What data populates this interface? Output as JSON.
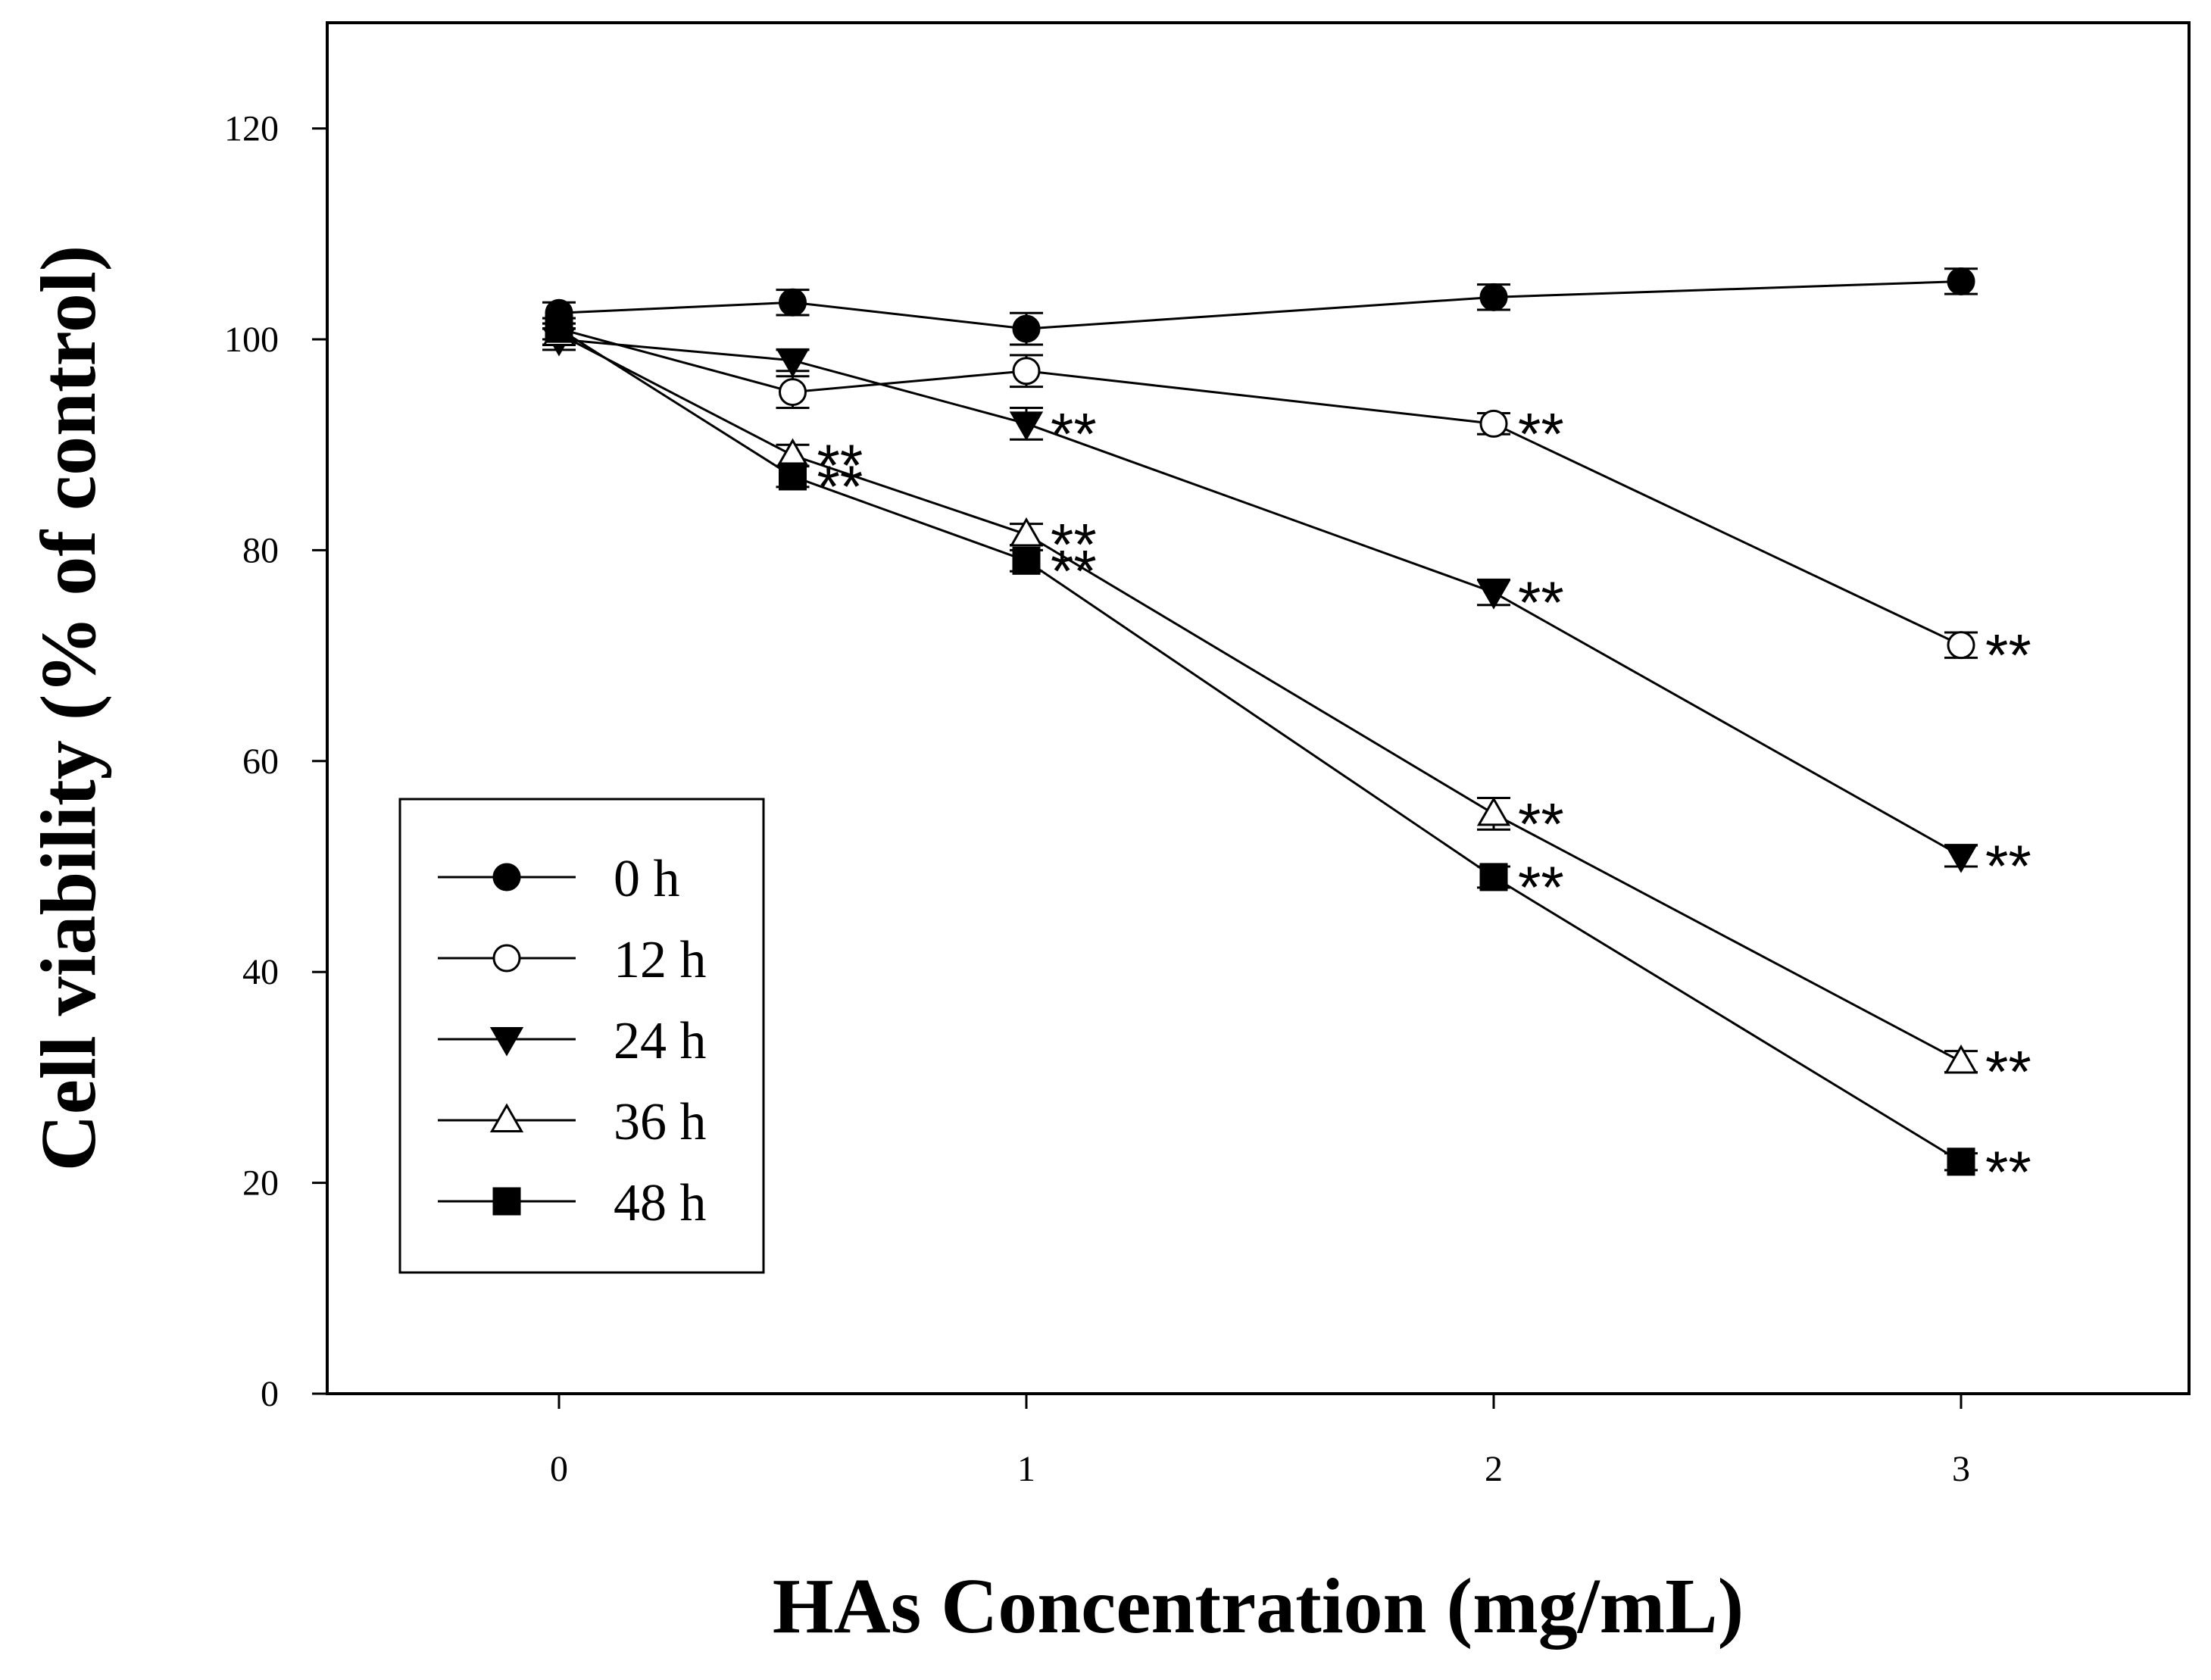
{
  "chart_data": {
    "type": "line",
    "title": "",
    "xlabel": "HAs Concentration (mg/mL)",
    "ylabel": "Cell viability (% of control)",
    "xlim": [
      -0.5,
      3.5
    ],
    "ylim": [
      0,
      130
    ],
    "xticks": [
      0,
      1,
      2,
      3
    ],
    "yticks": [
      0,
      20,
      40,
      60,
      80,
      100,
      120
    ],
    "x": [
      0,
      0.5,
      1,
      2,
      3
    ],
    "legend_position": "lower-left",
    "series": [
      {
        "name": "0 h",
        "marker": "circle-filled",
        "values": [
          102.5,
          103.5,
          101,
          104,
          105.5
        ],
        "errors": [
          1.0,
          1.2,
          1.5,
          1.2,
          1.2
        ],
        "significance": [
          "",
          "",
          "",
          "",
          ""
        ]
      },
      {
        "name": "12 h",
        "marker": "circle-open",
        "values": [
          101,
          95,
          97,
          92,
          71
        ],
        "errors": [
          1.0,
          1.5,
          1.5,
          1.0,
          1.2
        ],
        "significance": [
          "",
          "",
          "",
          "**",
          "**"
        ]
      },
      {
        "name": "24 h",
        "marker": "triangle-down-filled",
        "values": [
          100,
          98,
          92,
          76,
          51
        ],
        "errors": [
          1.0,
          1.0,
          1.5,
          1.2,
          1.0
        ],
        "significance": [
          "",
          "",
          "**",
          "**",
          "**"
        ]
      },
      {
        "name": "36 h",
        "marker": "triangle-up-open",
        "values": [
          100.5,
          89,
          81.5,
          55,
          31.5
        ],
        "errors": [
          1.0,
          1.0,
          1.0,
          1.5,
          1.0
        ],
        "significance": [
          "",
          "**",
          "**",
          "**",
          "**"
        ]
      },
      {
        "name": "48 h",
        "marker": "square-filled",
        "values": [
          101,
          87,
          79,
          49,
          22
        ],
        "errors": [
          1.0,
          1.0,
          1.0,
          1.0,
          0.8
        ],
        "significance": [
          "",
          "**",
          "**",
          "**",
          "**"
        ]
      }
    ]
  }
}
